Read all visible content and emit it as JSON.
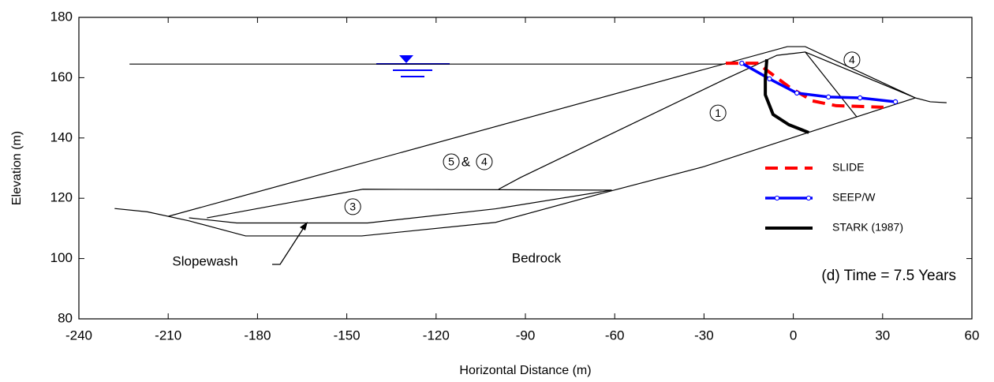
{
  "chart_data": {
    "type": "line",
    "xlabel": "Horizontal Distance (m)",
    "ylabel": "Elevation (m)",
    "xlim": [
      -240,
      60
    ],
    "ylim": [
      80,
      180
    ],
    "xticks": [
      -240,
      -210,
      -180,
      -150,
      -120,
      -90,
      -60,
      -30,
      0,
      30,
      60
    ],
    "yticks": [
      80,
      100,
      120,
      140,
      160,
      180
    ],
    "legend": "right",
    "series": [
      {
        "name": "SLIDE",
        "color": "#ff0000",
        "style": "dashed",
        "x": [
          -22.7,
          -12.1,
          -1.5,
          6.4,
          14.4,
          30.3
        ],
        "values": [
          164.8,
          164.8,
          157,
          152.3,
          150.7,
          150.2
        ]
      },
      {
        "name": "SEEP/W",
        "color": "#0000ff",
        "style": "markers",
        "x": [
          -17.3,
          -8,
          1.2,
          11.8,
          22.4,
          34.3
        ],
        "values": [
          164.8,
          159.6,
          154.9,
          153.6,
          153.3,
          152
        ]
      },
      {
        "name": "STARK (1987)",
        "color": "#000000",
        "style": "thick",
        "x": [
          -8.9,
          -9.4,
          -9.4,
          -6.8,
          -1.5,
          5.2
        ],
        "values": [
          166.1,
          159.6,
          154.3,
          147.8,
          144.4,
          141.8
        ]
      }
    ],
    "boundaries": [
      {
        "x": [
          -223,
          -23
        ],
        "values": [
          164.5,
          164.5
        ]
      },
      {
        "x": [
          -228,
          -217,
          -203,
          -184,
          -145,
          -100,
          -61,
          -30,
          5,
          41,
          46,
          51.5
        ],
        "values": [
          116.6,
          115.5,
          112.5,
          107.5,
          107.5,
          112,
          122.5,
          130.5,
          141.8,
          153.3,
          152,
          151.7
        ]
      },
      {
        "x": [
          -210,
          -2,
          4,
          41
        ],
        "values": [
          114,
          170.3,
          170.3,
          153.3
        ]
      },
      {
        "x": [
          -203,
          -187,
          -143,
          -100,
          -61
        ],
        "values": [
          113.5,
          111.8,
          111.8,
          116.5,
          122.7
        ]
      },
      {
        "x": [
          -197,
          -144.6,
          -61
        ],
        "values": [
          113.5,
          123,
          122.7
        ]
      },
      {
        "x": [
          -99,
          -91.6,
          -22.7,
          -5.5,
          4,
          21.3
        ],
        "values": [
          123,
          126.9,
          159.6,
          167.4,
          168.5,
          147
        ]
      },
      {
        "x": [
          4,
          41
        ],
        "values": [
          168.5,
          153.3
        ]
      }
    ],
    "annotations": [
      {
        "text": "1",
        "x": -25.3,
        "y": 148.3,
        "circled": true
      },
      {
        "text": "3",
        "x": -148,
        "y": 117.2,
        "circled": true
      },
      {
        "text": "4",
        "x": 19.7,
        "y": 165.9,
        "circled": true
      },
      {
        "text": "5",
        "x": -114.9,
        "y": 132.1,
        "circled": true
      },
      {
        "text": "&",
        "x": -110,
        "y": 132.1,
        "circled": false
      },
      {
        "text": "4",
        "x": -103.8,
        "y": 132.1,
        "circled": true
      },
      {
        "text": "Bedrock",
        "x": -86.3,
        "y": 100.2,
        "circled": false
      },
      {
        "text": "Slopewash",
        "x": -197.6,
        "y": 99.1,
        "circled": false
      }
    ],
    "note": "(d) Time = 7.5 Years"
  }
}
